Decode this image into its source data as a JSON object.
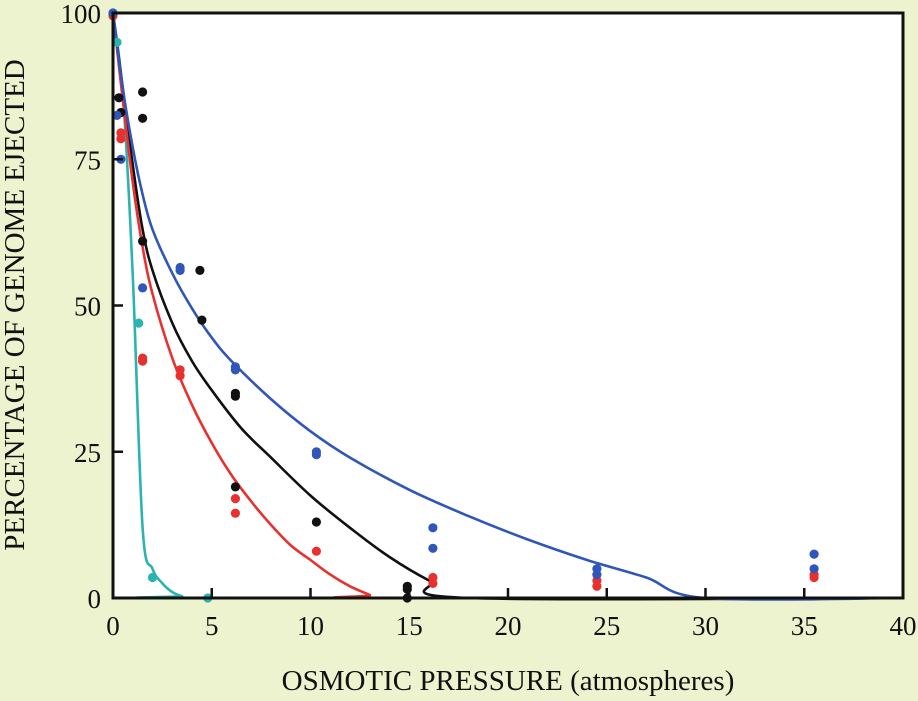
{
  "chart_data": {
    "type": "scatter",
    "title": "",
    "xlabel": "OSMOTIC PRESSURE (atmospheres)",
    "ylabel": "PERCENTAGE OF GENOME EJECTED",
    "xlim": [
      0,
      40
    ],
    "ylim": [
      0,
      100
    ],
    "xticks": [
      0,
      5,
      10,
      15,
      20,
      25,
      30,
      35,
      40
    ],
    "yticks": [
      0,
      25,
      50,
      75,
      100
    ],
    "grid": false,
    "series": [
      {
        "name": "teal",
        "color": "#2bb3b0",
        "points": [
          [
            0,
            100
          ],
          [
            0.2,
            95
          ],
          [
            1.3,
            47
          ],
          [
            2,
            3.5
          ],
          [
            4.8,
            0
          ]
        ],
        "curve": [
          [
            0,
            100
          ],
          [
            0.5,
            86
          ],
          [
            1,
            55
          ],
          [
            1.5,
            12
          ],
          [
            2,
            5
          ],
          [
            2.5,
            2.5
          ],
          [
            3,
            1
          ],
          [
            3.5,
            0.3
          ],
          [
            4,
            0
          ],
          [
            40,
            0
          ]
        ]
      },
      {
        "name": "black",
        "color": "#111111",
        "points": [
          [
            0.3,
            85.5
          ],
          [
            0.4,
            83
          ],
          [
            1.5,
            86.5
          ],
          [
            1.5,
            82
          ],
          [
            1.5,
            61
          ],
          [
            4.4,
            56
          ],
          [
            4.5,
            47.5
          ],
          [
            6.2,
            35
          ],
          [
            6.2,
            34.5
          ],
          [
            6.2,
            19
          ],
          [
            10.3,
            13
          ],
          [
            14.9,
            2
          ],
          [
            14.9,
            1.5
          ],
          [
            14.9,
            0
          ]
        ],
        "curve": [
          [
            0,
            100
          ],
          [
            0.5,
            87
          ],
          [
            1,
            74
          ],
          [
            1.5,
            63
          ],
          [
            2,
            56
          ],
          [
            3,
            47
          ],
          [
            4,
            40.5
          ],
          [
            5,
            35.5
          ],
          [
            6.5,
            29
          ],
          [
            8,
            24
          ],
          [
            10,
            17.5
          ],
          [
            12,
            12
          ],
          [
            14,
            7
          ],
          [
            16,
            3
          ],
          [
            18,
            0
          ],
          [
            40,
            0
          ]
        ]
      },
      {
        "name": "red",
        "color": "#e8312f",
        "points": [
          [
            0,
            99.5
          ],
          [
            0.4,
            79.5
          ],
          [
            0.4,
            78.5
          ],
          [
            1.5,
            41
          ],
          [
            1.5,
            40.5
          ],
          [
            3.4,
            39
          ],
          [
            3.4,
            38
          ],
          [
            6.2,
            17
          ],
          [
            6.2,
            14.5
          ],
          [
            10.3,
            8
          ],
          [
            16.2,
            3.5
          ],
          [
            16.2,
            2.5
          ],
          [
            24.5,
            3
          ],
          [
            24.5,
            2
          ],
          [
            35.5,
            4
          ],
          [
            35.5,
            3.5
          ]
        ],
        "curve": [
          [
            0,
            100
          ],
          [
            0.5,
            85
          ],
          [
            1,
            71
          ],
          [
            1.5,
            60
          ],
          [
            2,
            52
          ],
          [
            3,
            41
          ],
          [
            4,
            33
          ],
          [
            5,
            26.5
          ],
          [
            6,
            21
          ],
          [
            7,
            16.5
          ],
          [
            8,
            12.5
          ],
          [
            9,
            9
          ],
          [
            10,
            6.5
          ],
          [
            11,
            4
          ],
          [
            12,
            2
          ],
          [
            13,
            0.5
          ],
          [
            13.2,
            0
          ],
          [
            40,
            0
          ]
        ]
      },
      {
        "name": "blue",
        "color": "#2f56b8",
        "points": [
          [
            0,
            100
          ],
          [
            0.2,
            82.5
          ],
          [
            0.4,
            75
          ],
          [
            1.5,
            53
          ],
          [
            3.4,
            56.5
          ],
          [
            3.4,
            56
          ],
          [
            6.2,
            39.5
          ],
          [
            6.2,
            39
          ],
          [
            10.3,
            25
          ],
          [
            10.3,
            24.5
          ],
          [
            16.2,
            12
          ],
          [
            16.2,
            8.5
          ],
          [
            24.5,
            5
          ],
          [
            24.5,
            4
          ],
          [
            35.5,
            7.5
          ],
          [
            35.5,
            5
          ]
        ],
        "curve": [
          [
            0,
            100
          ],
          [
            0.5,
            87
          ],
          [
            1,
            77
          ],
          [
            1.5,
            69
          ],
          [
            2,
            63
          ],
          [
            3,
            55.5
          ],
          [
            4,
            49.5
          ],
          [
            5,
            44.5
          ],
          [
            6,
            40.5
          ],
          [
            8,
            34
          ],
          [
            10,
            28.5
          ],
          [
            12,
            24
          ],
          [
            15,
            18.5
          ],
          [
            18,
            14
          ],
          [
            21,
            10
          ],
          [
            24,
            6.5
          ],
          [
            27,
            3.5
          ],
          [
            30,
            0
          ],
          [
            40,
            0
          ]
        ]
      }
    ]
  }
}
